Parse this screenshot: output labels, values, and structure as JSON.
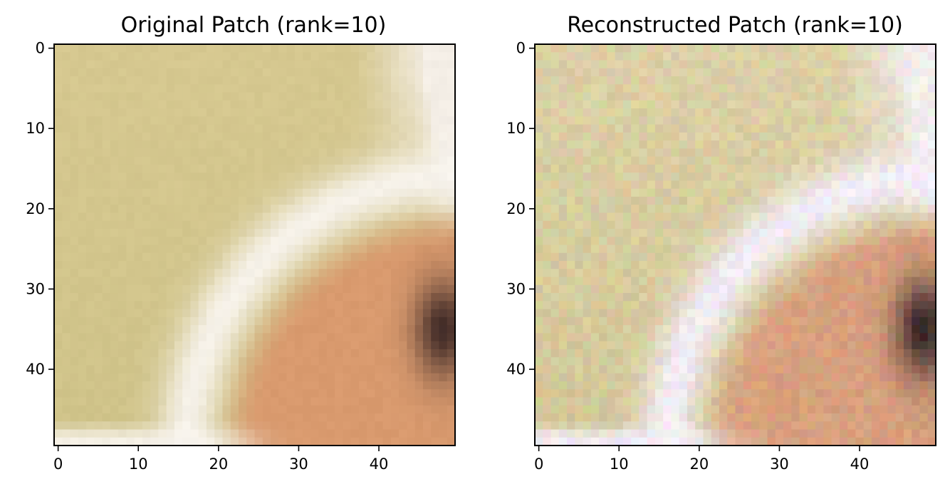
{
  "chart_data": [
    {
      "type": "heatmap",
      "title": "Original Patch (rank=10)",
      "x_ticks": [
        "0",
        "10",
        "20",
        "30",
        "40"
      ],
      "y_ticks": [
        "0",
        "10",
        "20",
        "30",
        "40"
      ],
      "xlim": [
        -0.5,
        49.5
      ],
      "ylim": [
        49.5,
        -0.5
      ],
      "grid": false,
      "colors": {
        "background": "#d6c890",
        "edge_highlight": "#f4eee6",
        "white_band": "#f8f4ee",
        "skin_tone": "#d99a6e",
        "dark_shadow": "#3a2624"
      }
    },
    {
      "type": "heatmap",
      "title": "Reconstructed Patch (rank=10)",
      "x_ticks": [
        "0",
        "10",
        "20",
        "30",
        "40"
      ],
      "y_ticks": [
        "0",
        "10",
        "20",
        "30",
        "40"
      ],
      "xlim": [
        -0.5,
        49.5
      ],
      "ylim": [
        49.5,
        -0.5
      ],
      "grid": false,
      "colors": {
        "background": "#dcd0a0",
        "edge_highlight": "#f2ece6",
        "white_band": "#f4eef4",
        "skin_tone": "#d8a078",
        "dark_shadow": "#2e1e1c"
      }
    }
  ]
}
